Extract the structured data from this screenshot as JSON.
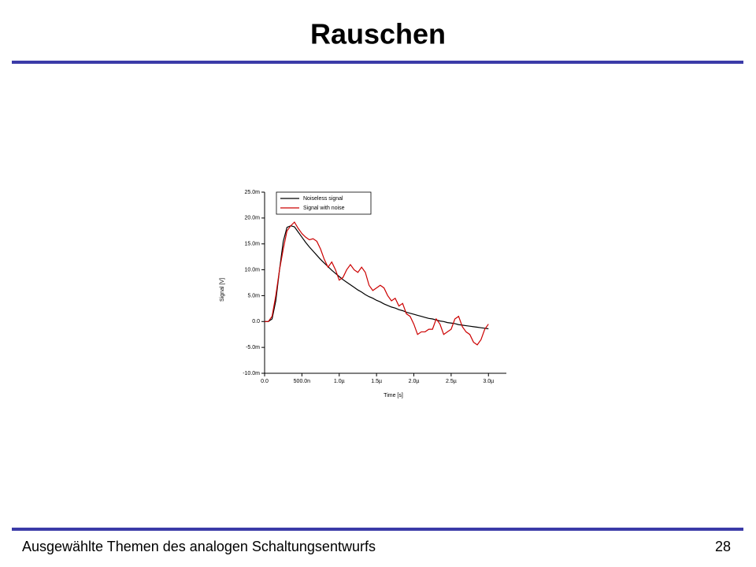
{
  "slide": {
    "title": "Rauschen",
    "footer": "Ausgewählte Themen des analogen Schaltungsentwurfs",
    "page": "28"
  },
  "chart_data": {
    "type": "line",
    "x_label": "Time [s]",
    "y_label": "Signal [V]",
    "x": [
      0,
      5e-08,
      1e-07,
      1.5e-07,
      2e-07,
      2.5e-07,
      3e-07,
      3.5e-07,
      4e-07,
      4.5e-07,
      5e-07,
      5.5e-07,
      6e-07,
      6.5e-07,
      7e-07,
      7.5e-07,
      8e-07,
      8.5e-07,
      9e-07,
      9.5e-07,
      1e-06,
      1.05e-06,
      1.1e-06,
      1.15e-06,
      1.2e-06,
      1.25e-06,
      1.3e-06,
      1.35e-06,
      1.4e-06,
      1.45e-06,
      1.5e-06,
      1.55e-06,
      1.6e-06,
      1.65e-06,
      1.7e-06,
      1.75e-06,
      1.8e-06,
      1.85e-06,
      1.9e-06,
      1.95e-06,
      2e-06,
      2.05e-06,
      2.1e-06,
      2.15e-06,
      2.2e-06,
      2.25e-06,
      2.3e-06,
      2.35e-06,
      2.4e-06,
      2.45e-06,
      2.5e-06,
      2.55e-06,
      2.6e-06,
      2.65e-06,
      2.7e-06,
      2.75e-06,
      2.8e-06,
      2.85e-06,
      2.9e-06,
      2.95e-06,
      3e-06
    ],
    "series": [
      {
        "name": "Noiseless signal",
        "color": "#000000",
        "values": [
          0,
          0,
          0.0005,
          0.004,
          0.01,
          0.0155,
          0.0182,
          0.0185,
          0.0183,
          0.0173,
          0.0163,
          0.0153,
          0.0144,
          0.0136,
          0.0128,
          0.012,
          0.0113,
          0.0106,
          0.0099,
          0.0093,
          0.0087,
          0.0081,
          0.0076,
          0.0071,
          0.0066,
          0.0061,
          0.0057,
          0.0052,
          0.0048,
          0.0045,
          0.0041,
          0.0038,
          0.0034,
          0.0031,
          0.0028,
          0.0026,
          0.0023,
          0.0021,
          0.0018,
          0.0016,
          0.0014,
          0.0012,
          0.001,
          0.0008,
          0.0006,
          0.0005,
          0.0003,
          0.0001,
          0,
          -0.0002,
          -0.0003,
          -0.0004,
          -0.0006,
          -0.0007,
          -0.0008,
          -0.0009,
          -0.001,
          -0.0011,
          -0.0012,
          -0.0013,
          -0.0014
        ]
      },
      {
        "name": "Signal with noise",
        "color": "#cc0000",
        "values": [
          0,
          0,
          0.001,
          0.005,
          0.01,
          0.014,
          0.0175,
          0.0185,
          0.0192,
          0.018,
          0.017,
          0.0163,
          0.0158,
          0.016,
          0.0155,
          0.014,
          0.012,
          0.0105,
          0.0115,
          0.01,
          0.008,
          0.0085,
          0.01,
          0.011,
          0.01,
          0.0095,
          0.0105,
          0.0095,
          0.007,
          0.006,
          0.0065,
          0.007,
          0.0065,
          0.005,
          0.004,
          0.0045,
          0.003,
          0.0035,
          0.0015,
          0.001,
          -0.0005,
          -0.0025,
          -0.002,
          -0.002,
          -0.0015,
          -0.0015,
          0.0005,
          -0.0005,
          -0.0025,
          -0.002,
          -0.0015,
          0.0005,
          0.001,
          -0.001,
          -0.002,
          -0.0025,
          -0.004,
          -0.0045,
          -0.0035,
          -0.0015,
          -0.0005
        ]
      }
    ],
    "xlim": [
      0,
      3.24e-06
    ],
    "ylim": [
      -0.01,
      0.025
    ],
    "xticks": [
      {
        "value": 0,
        "label": "0.0"
      },
      {
        "value": 5e-07,
        "label": "500.0n"
      },
      {
        "value": 1e-06,
        "label": "1.0µ"
      },
      {
        "value": 1.5e-06,
        "label": "1.5µ"
      },
      {
        "value": 2e-06,
        "label": "2.0µ"
      },
      {
        "value": 2.5e-06,
        "label": "2.5µ"
      },
      {
        "value": 3e-06,
        "label": "3.0µ"
      }
    ],
    "yticks": [
      {
        "value": -0.01,
        "label": "-10.0m"
      },
      {
        "value": -0.005,
        "label": "-5.0m"
      },
      {
        "value": 0,
        "label": "0.0"
      },
      {
        "value": 0.005,
        "label": "5.0m"
      },
      {
        "value": 0.01,
        "label": "10.0m"
      },
      {
        "value": 0.015,
        "label": "15.0m"
      },
      {
        "value": 0.02,
        "label": "20.0m"
      },
      {
        "value": 0.025,
        "label": "25.0m"
      }
    ],
    "legend": "upper left"
  }
}
